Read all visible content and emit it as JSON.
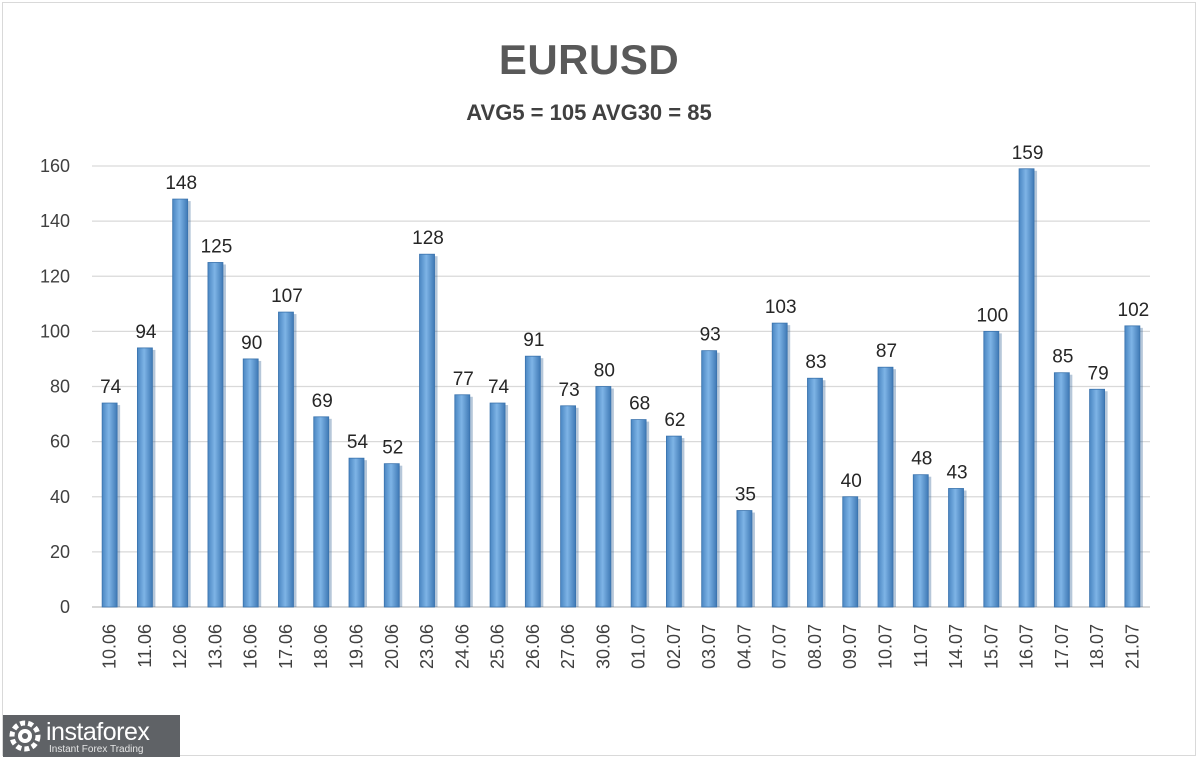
{
  "chart_data": {
    "type": "bar",
    "title": "EURUSD",
    "subtitle": "AVG5 = 105 AVG30 = 85",
    "categories": [
      "10.06",
      "11.06",
      "12.06",
      "13.06",
      "16.06",
      "17.06",
      "18.06",
      "19.06",
      "20.06",
      "23.06",
      "24.06",
      "25.06",
      "26.06",
      "27.06",
      "30.06",
      "01.07",
      "02.07",
      "03.07",
      "04.07",
      "07.07",
      "08.07",
      "09.07",
      "10.07",
      "11.07",
      "14.07",
      "15.07",
      "16.07",
      "17.07",
      "18.07",
      "21.07"
    ],
    "values": [
      74,
      94,
      148,
      125,
      90,
      107,
      69,
      54,
      52,
      128,
      77,
      74,
      91,
      73,
      80,
      68,
      62,
      93,
      35,
      103,
      83,
      40,
      87,
      48,
      43,
      100,
      159,
      85,
      79,
      102
    ],
    "ylim": [
      0,
      160
    ],
    "yticks": [
      0,
      20,
      40,
      60,
      80,
      100,
      120,
      140,
      160
    ],
    "grid": true,
    "bar_color": "#5b9bd5"
  },
  "watermark": {
    "name": "instaforex",
    "tagline": "Instant Forex Trading"
  }
}
